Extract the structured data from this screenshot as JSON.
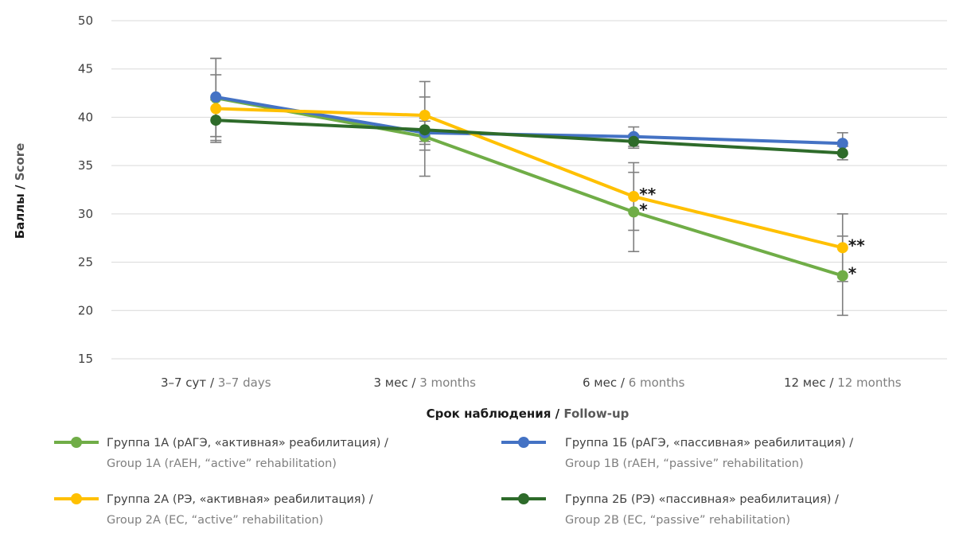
{
  "chart_data": {
    "type": "line",
    "categories": [
      {
        "ru": "3–7 сут / ",
        "en": "3–7 days"
      },
      {
        "ru": "3 мес / ",
        "en": "3 months"
      },
      {
        "ru": "6 мес / ",
        "en": "6 months"
      },
      {
        "ru": "12 мес / ",
        "en": "12 months"
      }
    ],
    "xlabel": {
      "ru": "Срок наблюдения / ",
      "en": "Follow-up"
    },
    "ylabel": {
      "ru": "Баллы / ",
      "en": "Score"
    },
    "ylim": [
      15,
      50
    ],
    "yticks": [
      15,
      20,
      25,
      30,
      35,
      40,
      45,
      50
    ],
    "grid": "horizontal",
    "legend_position": "bottom",
    "series": [
      {
        "name_ru": "Группа 1А (рАГЭ, «активная» реабилитация) /",
        "name_en": "Group 1A (rAEH, “active” rehabilitation)",
        "color": "#70ad47",
        "marker": "circle",
        "values": [
          42.0,
          38.0,
          30.2,
          23.6
        ],
        "error_low": [
          38.0,
          33.9,
          26.1,
          19.5
        ],
        "error_high": [
          46.1,
          42.1,
          34.3,
          27.7
        ],
        "annotations": [
          "",
          "",
          "*",
          "*"
        ]
      },
      {
        "name_ru": "Группа 1Б (рАГЭ, «пассивная» реабилитация) /",
        "name_en": "Group 1B (rAEH, “passive” rehabilitation)",
        "color": "#4472c4",
        "marker": "circle",
        "values": [
          42.1,
          38.4,
          38.0,
          37.3
        ],
        "error_low": [
          38.0,
          37.2,
          37.0,
          36.2
        ],
        "error_high": [
          46.1,
          39.6,
          39.0,
          38.4
        ],
        "annotations": [
          "",
          "",
          "",
          ""
        ]
      },
      {
        "name_ru": "Группа 2А (РЭ, «активная» реабилитация) /",
        "name_en": "Group 2A (EC, “active” rehabilitation)",
        "color": "#ffc000",
        "marker": "circle",
        "values": [
          40.9,
          40.2,
          31.8,
          26.5
        ],
        "error_low": [
          37.4,
          36.6,
          28.3,
          23.0
        ],
        "error_high": [
          44.4,
          43.7,
          35.3,
          30.0
        ],
        "annotations": [
          "",
          "",
          "**",
          "**"
        ]
      },
      {
        "name_ru": "Группа 2Б (РЭ) «пассивная» реабилитация) /",
        "name_en": "Group 2B (EC, “passive” rehabilitation)",
        "color": "#2e6b2a",
        "marker": "circle",
        "values": [
          39.7,
          38.7,
          37.5,
          36.3
        ],
        "error_low": [
          37.6,
          37.5,
          36.8,
          35.6
        ],
        "error_high": [
          41.8,
          39.9,
          38.2,
          37.0
        ],
        "annotations": [
          "",
          "",
          "",
          ""
        ]
      }
    ]
  }
}
